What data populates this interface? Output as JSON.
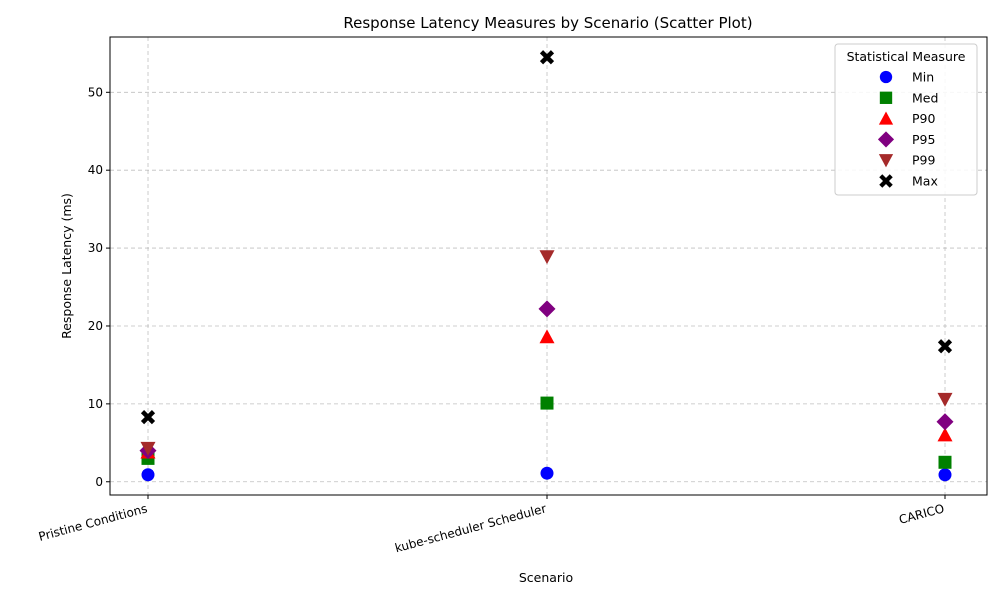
{
  "chart_data": {
    "type": "scatter",
    "title": "Response Latency Measures by Scenario (Scatter Plot)",
    "xlabel": "Scenario",
    "ylabel": "Response Latency (ms)",
    "categories": [
      "Pristine Conditions",
      "kube-scheduler Scheduler",
      "CARICO"
    ],
    "ylim": [
      -1.7,
      57.1
    ],
    "yticks": [
      0,
      10,
      20,
      30,
      40,
      50
    ],
    "grid": true,
    "legend": {
      "title": "Statistical Measure",
      "placement": "top-right"
    },
    "series": [
      {
        "name": "Min",
        "color": "#0000ff",
        "marker": "circle",
        "values": [
          0.9,
          1.1,
          0.9
        ]
      },
      {
        "name": "Med",
        "color": "#008000",
        "marker": "square",
        "values": [
          3.0,
          10.1,
          2.5
        ]
      },
      {
        "name": "P90",
        "color": "#ff0000",
        "marker": "triangle-up",
        "values": [
          3.8,
          18.6,
          6.0
        ]
      },
      {
        "name": "P95",
        "color": "#800080",
        "marker": "diamond",
        "values": [
          4.0,
          22.2,
          7.7
        ]
      },
      {
        "name": "P99",
        "color": "#a52a2a",
        "marker": "triangle-down",
        "values": [
          4.3,
          28.9,
          10.6
        ]
      },
      {
        "name": "Max",
        "color": "#000000",
        "marker": "x",
        "values": [
          8.3,
          54.5,
          17.4
        ]
      }
    ]
  }
}
